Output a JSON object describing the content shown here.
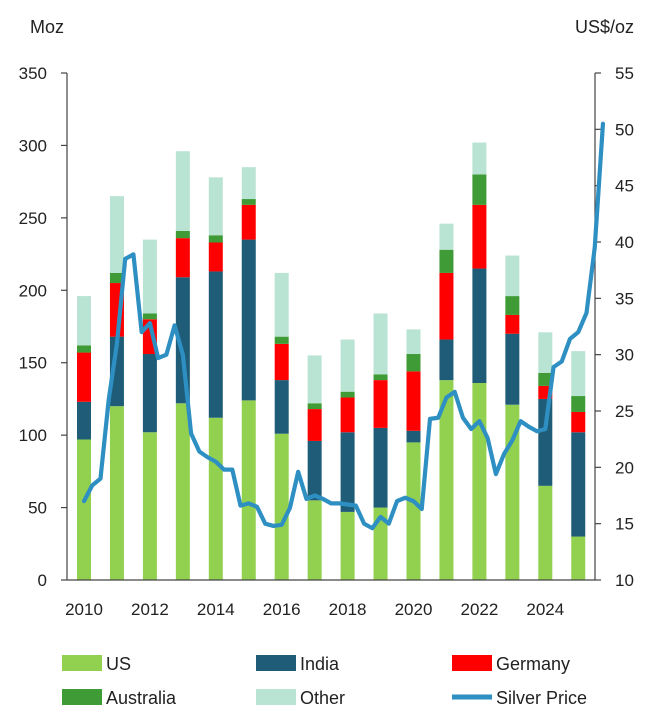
{
  "chart_data": {
    "type": "bar",
    "title": "",
    "y_left": {
      "label": "Moz",
      "ylim": [
        0,
        350
      ],
      "ticks": [
        "0",
        "50",
        "100",
        "150",
        "200",
        "250",
        "300",
        "350"
      ]
    },
    "y_right": {
      "label": "US$/oz",
      "ylim": [
        10,
        55
      ],
      "ticks": [
        "10",
        "15",
        "20",
        "25",
        "30",
        "35",
        "40",
        "45",
        "50",
        "55"
      ]
    },
    "x_tick_labels": [
      "2010",
      "2012",
      "2014",
      "2016",
      "2018",
      "2020",
      "2022",
      "2024"
    ],
    "categories": [
      "2010",
      "2011",
      "2012",
      "2013",
      "2014",
      "2015",
      "2016",
      "2017",
      "2018",
      "2019",
      "2020",
      "2021",
      "2022",
      "2023",
      "2024",
      "2025"
    ],
    "stacked": true,
    "series": [
      {
        "name": "US",
        "color": "#92d050",
        "values": [
          97,
          120,
          102,
          122,
          112,
          124,
          101,
          55,
          47,
          50,
          95,
          138,
          136,
          121,
          65,
          30
        ]
      },
      {
        "name": "India",
        "color": "#1f5c78",
        "values": [
          26,
          48,
          54,
          87,
          101,
          111,
          37,
          41,
          55,
          55,
          8,
          28,
          79,
          49,
          60,
          72
        ]
      },
      {
        "name": "Germany",
        "color": "#ff0000",
        "values": [
          34,
          37,
          24,
          27,
          20,
          24,
          25,
          22,
          24,
          33,
          41,
          46,
          44,
          13,
          9,
          14
        ]
      },
      {
        "name": "Australia",
        "color": "#3e9b35",
        "values": [
          5,
          7,
          4,
          5,
          5,
          4,
          5,
          4,
          4,
          4,
          12,
          16,
          21,
          13,
          9,
          11
        ]
      },
      {
        "name": "Other",
        "color": "#b9e3d3",
        "values": [
          34,
          53,
          51,
          55,
          40,
          22,
          44,
          33,
          36,
          42,
          17,
          18,
          22,
          28,
          28,
          31
        ]
      }
    ],
    "line": {
      "name": "Silver Price",
      "color": "#2e8fc2",
      "axis": "right",
      "points": [
        [
          2010.0,
          17.0
        ],
        [
          2010.25,
          18.4
        ],
        [
          2010.5,
          19.0
        ],
        [
          2010.75,
          26.0
        ],
        [
          2011.0,
          31.0
        ],
        [
          2011.25,
          38.5
        ],
        [
          2011.5,
          38.9
        ],
        [
          2011.75,
          32.0
        ],
        [
          2012.0,
          32.8
        ],
        [
          2012.25,
          29.7
        ],
        [
          2012.5,
          30.0
        ],
        [
          2012.75,
          32.6
        ],
        [
          2013.0,
          30.0
        ],
        [
          2013.25,
          23.0
        ],
        [
          2013.5,
          21.4
        ],
        [
          2013.75,
          20.9
        ],
        [
          2014.0,
          20.5
        ],
        [
          2014.25,
          19.8
        ],
        [
          2014.5,
          19.8
        ],
        [
          2014.75,
          16.6
        ],
        [
          2015.0,
          16.8
        ],
        [
          2015.25,
          16.5
        ],
        [
          2015.5,
          15.0
        ],
        [
          2015.75,
          14.8
        ],
        [
          2016.0,
          14.9
        ],
        [
          2016.25,
          16.4
        ],
        [
          2016.5,
          19.6
        ],
        [
          2016.75,
          17.2
        ],
        [
          2017.0,
          17.5
        ],
        [
          2017.25,
          17.2
        ],
        [
          2017.5,
          16.8
        ],
        [
          2017.75,
          16.8
        ],
        [
          2018.0,
          16.7
        ],
        [
          2018.25,
          16.6
        ],
        [
          2018.5,
          15.0
        ],
        [
          2018.75,
          14.6
        ],
        [
          2019.0,
          15.6
        ],
        [
          2019.25,
          15.0
        ],
        [
          2019.5,
          17.0
        ],
        [
          2019.75,
          17.3
        ],
        [
          2020.0,
          17.0
        ],
        [
          2020.25,
          16.3
        ],
        [
          2020.5,
          24.3
        ],
        [
          2020.75,
          24.4
        ],
        [
          2021.0,
          26.2
        ],
        [
          2021.25,
          26.7
        ],
        [
          2021.5,
          24.4
        ],
        [
          2021.75,
          23.4
        ],
        [
          2022.0,
          24.1
        ],
        [
          2022.25,
          22.6
        ],
        [
          2022.5,
          19.4
        ],
        [
          2022.75,
          21.2
        ],
        [
          2023.0,
          22.4
        ],
        [
          2023.25,
          24.1
        ],
        [
          2023.5,
          23.6
        ],
        [
          2023.75,
          23.2
        ],
        [
          2024.0,
          23.4
        ],
        [
          2024.25,
          28.9
        ],
        [
          2024.5,
          29.4
        ],
        [
          2024.75,
          31.4
        ],
        [
          2025.0,
          32.0
        ],
        [
          2025.25,
          33.7
        ],
        [
          2025.5,
          39.5
        ],
        [
          2025.75,
          50.5
        ]
      ]
    },
    "legend": {
      "placement": "bottom",
      "entries": [
        {
          "name": "US",
          "kind": "box",
          "color": "#92d050"
        },
        {
          "name": "India",
          "kind": "box",
          "color": "#1f5c78"
        },
        {
          "name": "Germany",
          "kind": "box",
          "color": "#ff0000"
        },
        {
          "name": "Australia",
          "kind": "box",
          "color": "#3e9b35"
        },
        {
          "name": "Other",
          "kind": "box",
          "color": "#b9e3d3"
        },
        {
          "name": "Silver Price",
          "kind": "line",
          "color": "#2e8fc2"
        }
      ]
    },
    "grid": false
  }
}
